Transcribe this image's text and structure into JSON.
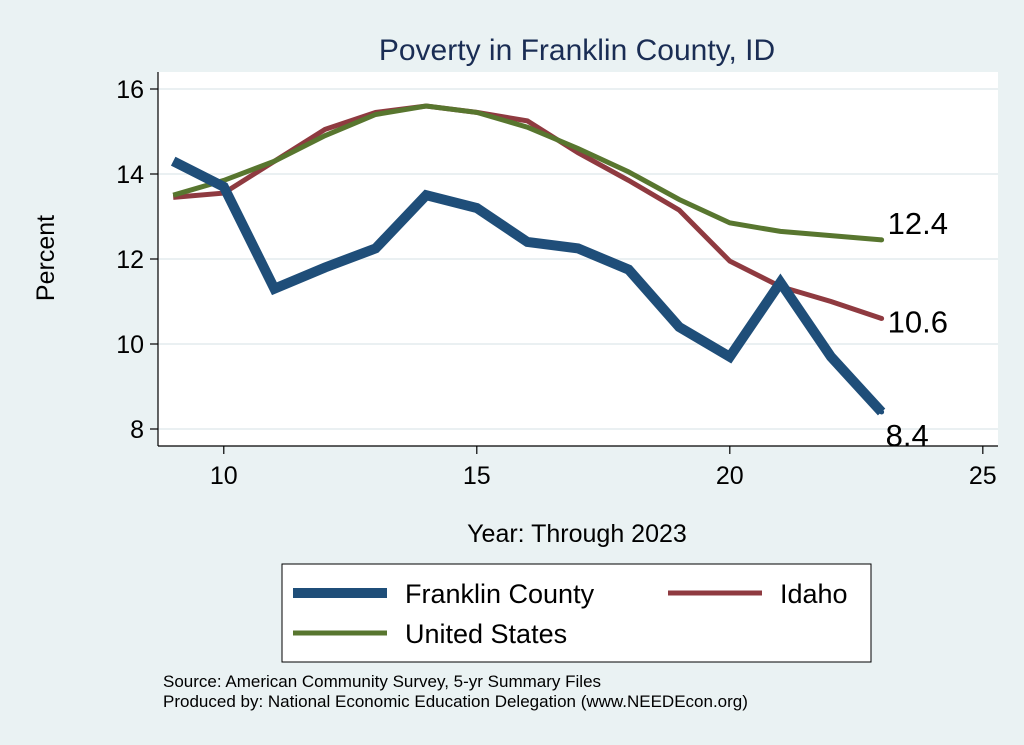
{
  "chart_data": {
    "type": "line",
    "title": "Poverty in Franklin County, ID",
    "xlabel": "Year: Through 2023",
    "ylabel": "Percent",
    "xlim": [
      8.7,
      25.3
    ],
    "ylim": [
      7.6,
      16.4
    ],
    "xticks": [
      10,
      15,
      20,
      25
    ],
    "yticks": [
      8,
      10,
      12,
      14,
      16
    ],
    "grid": true,
    "x": [
      9,
      10,
      11,
      12,
      13,
      14,
      15,
      16,
      17,
      18,
      19,
      20,
      21,
      22,
      23
    ],
    "series": [
      {
        "name": "Franklin County",
        "color": "#1f4e79",
        "width": 10,
        "values": [
          14.3,
          13.7,
          11.3,
          11.8,
          12.25,
          13.5,
          13.2,
          12.4,
          12.25,
          11.75,
          10.4,
          9.7,
          11.45,
          9.7,
          8.4
        ],
        "end_label": "8.4"
      },
      {
        "name": "Idaho",
        "color": "#8f3a40",
        "width": 5,
        "values": [
          13.45,
          13.55,
          14.3,
          15.05,
          15.45,
          15.6,
          15.45,
          15.25,
          14.5,
          13.85,
          13.15,
          11.95,
          11.35,
          11.0,
          10.6
        ],
        "end_label": "10.6"
      },
      {
        "name": "United States",
        "color": "#58762f",
        "width": 5,
        "values": [
          13.5,
          13.85,
          14.3,
          14.9,
          15.4,
          15.6,
          15.45,
          15.1,
          14.6,
          14.05,
          13.4,
          12.85,
          12.65,
          12.55,
          12.45
        ],
        "end_label": "12.4"
      }
    ],
    "legend": {
      "placement": "bottom",
      "entries": [
        "Franklin County",
        "Idaho",
        "United States"
      ]
    },
    "notes": [
      "Source: American Community Survey, 5-yr Summary Files",
      "Produced by: National Economic Education Delegation (www.NEEDEcon.org)"
    ]
  }
}
